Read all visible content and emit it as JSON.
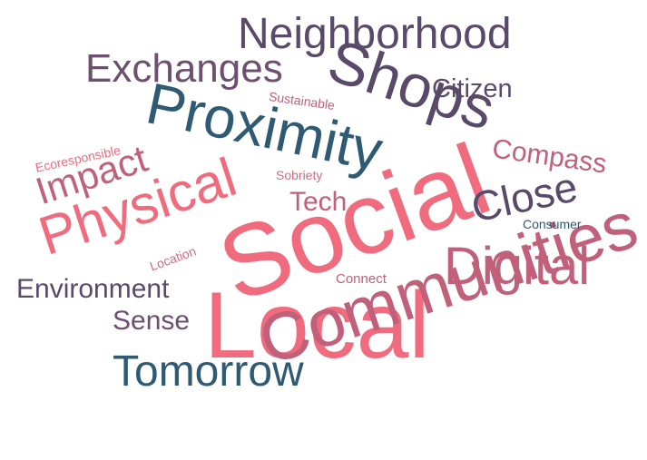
{
  "word_cloud": {
    "colors": {
      "coral": "#f06b7e",
      "rose": "#c0607a",
      "plum": "#6e4f6f",
      "purple": "#5a4a6a",
      "teal": "#2f5a73",
      "pink": "#d46a80"
    },
    "words": [
      {
        "id": "social",
        "text": "Social",
        "color": "#f06b7e"
      },
      {
        "id": "local",
        "text": "Local",
        "color": "#f06b7e"
      },
      {
        "id": "communities",
        "text": "Communities",
        "color": "#c0607a"
      },
      {
        "id": "proximity",
        "text": "Proximity",
        "color": "#2f5a73"
      },
      {
        "id": "physical",
        "text": "Physical",
        "color": "#f06b7e"
      },
      {
        "id": "shops",
        "text": "Shops",
        "color": "#5a4a6a"
      },
      {
        "id": "neighborhood",
        "text": "Neighborhood",
        "color": "#5a4a6a"
      },
      {
        "id": "exchanges",
        "text": "Exchanges",
        "color": "#6e4f6f"
      },
      {
        "id": "digital",
        "text": "Digital",
        "color": "#c0607a"
      },
      {
        "id": "tomorrow",
        "text": "Tomorrow",
        "color": "#2f5a73"
      },
      {
        "id": "impact",
        "text": "Impact",
        "color": "#c0607a"
      },
      {
        "id": "close",
        "text": "Close",
        "color": "#5a4a6a"
      },
      {
        "id": "environment",
        "text": "Environment",
        "color": "#5a4a6a"
      },
      {
        "id": "sense",
        "text": "Sense",
        "color": "#6e4f6f"
      },
      {
        "id": "compass",
        "text": "Compass",
        "color": "#c0607a"
      },
      {
        "id": "citizen",
        "text": "Citizen",
        "color": "#5a4a6a"
      },
      {
        "id": "tech",
        "text": "Tech",
        "color": "#c0607a"
      },
      {
        "id": "sustainable",
        "text": "Sustainable",
        "color": "#c0607a"
      },
      {
        "id": "ecoresponsible",
        "text": "Ecoresponsible",
        "color": "#f06b7e"
      },
      {
        "id": "sobriety",
        "text": "Sobriety",
        "color": "#d46a80"
      },
      {
        "id": "location",
        "text": "Location",
        "color": "#d46a80"
      },
      {
        "id": "connect",
        "text": "Connect",
        "color": "#c0607a"
      },
      {
        "id": "consumer",
        "text": "Consumer",
        "color": "#2f5a73"
      }
    ]
  }
}
